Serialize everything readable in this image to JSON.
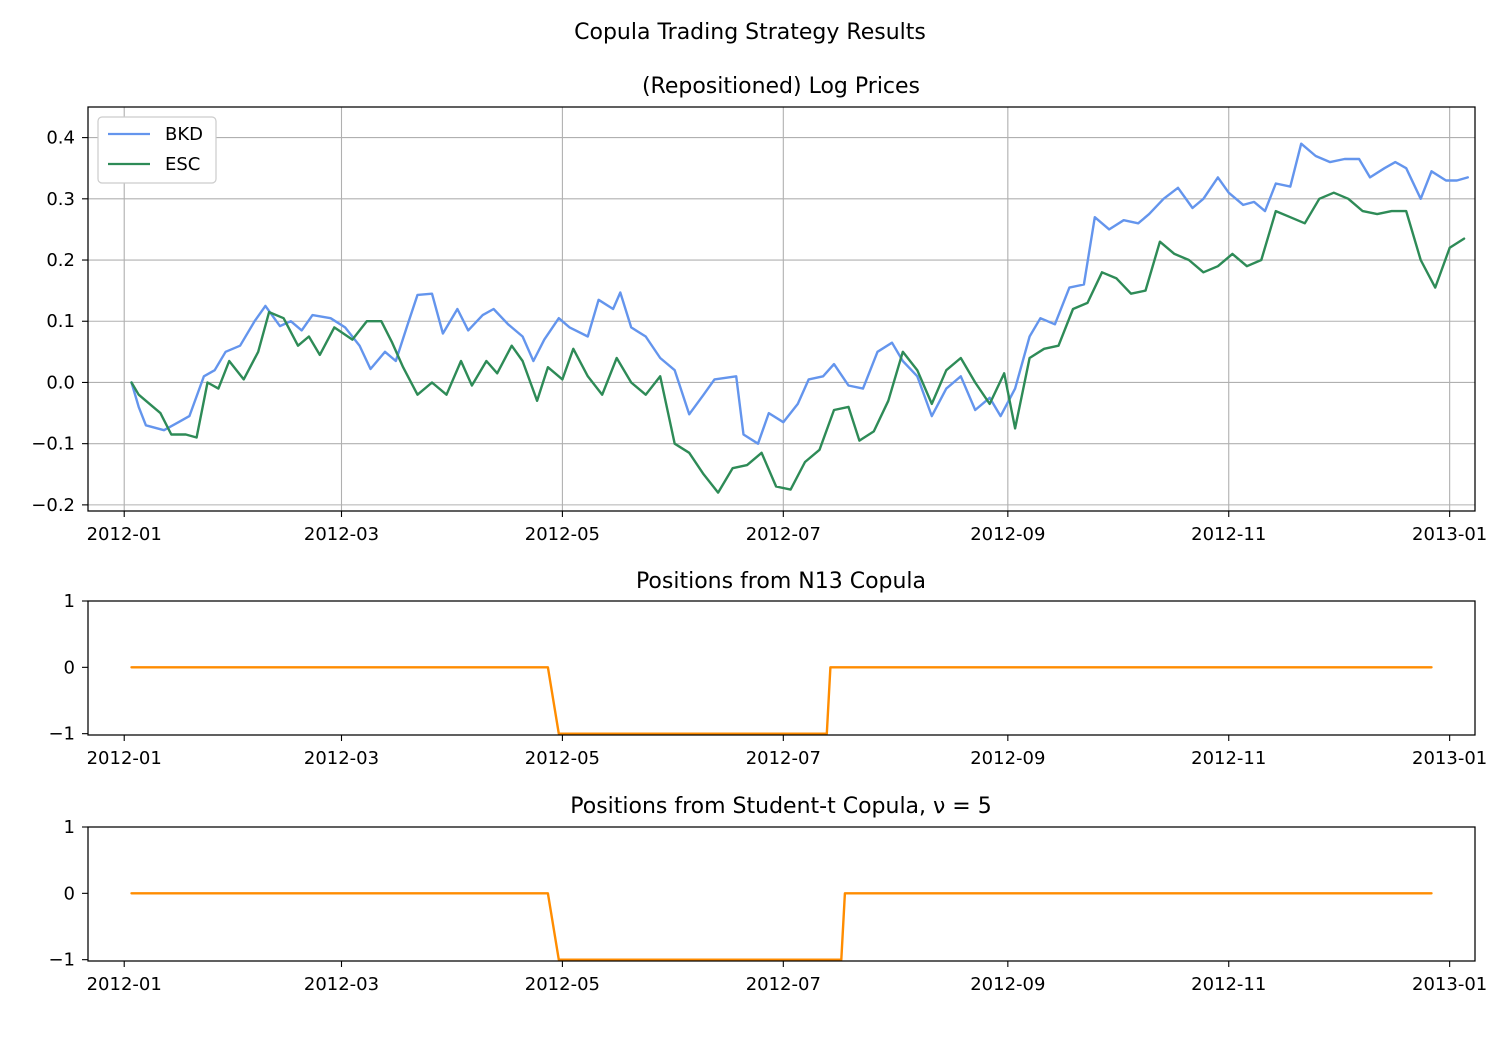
{
  "figure": {
    "suptitle": "Copula Trading Strategy Results"
  },
  "chart_data": [
    {
      "type": "line",
      "title": "(Repositioned) Log Prices",
      "xlabel": "",
      "ylabel": "",
      "x_ticks": [
        "2012-01",
        "2012-03",
        "2012-05",
        "2012-07",
        "2012-09",
        "2012-11",
        "2013-01"
      ],
      "y_ticks": [
        "−0.2",
        "−0.1",
        "0.0",
        "0.1",
        "0.2",
        "0.3",
        "0.4"
      ],
      "xlim": [
        "2011-12-22",
        "2013-01-08"
      ],
      "ylim": [
        -0.21,
        0.45
      ],
      "grid": true,
      "legend": "top-left",
      "series": [
        {
          "name": "BKD",
          "color": "#6495ed",
          "points": [
            [
              "2012-01-03",
              0.0
            ],
            [
              "2012-01-05",
              -0.04
            ],
            [
              "2012-01-07",
              -0.07
            ],
            [
              "2012-01-12",
              -0.078
            ],
            [
              "2012-01-16",
              -0.065
            ],
            [
              "2012-01-19",
              -0.055
            ],
            [
              "2012-01-23",
              0.01
            ],
            [
              "2012-01-26",
              0.02
            ],
            [
              "2012-01-29",
              0.05
            ],
            [
              "2012-02-02",
              0.06
            ],
            [
              "2012-02-06",
              0.1
            ],
            [
              "2012-02-09",
              0.125
            ],
            [
              "2012-02-13",
              0.092
            ],
            [
              "2012-02-16",
              0.1
            ],
            [
              "2012-02-19",
              0.085
            ],
            [
              "2012-02-22",
              0.11
            ],
            [
              "2012-02-27",
              0.105
            ],
            [
              "2012-03-02",
              0.09
            ],
            [
              "2012-03-06",
              0.06
            ],
            [
              "2012-03-09",
              0.022
            ],
            [
              "2012-03-13",
              0.05
            ],
            [
              "2012-03-16",
              0.035
            ],
            [
              "2012-03-19",
              0.09
            ],
            [
              "2012-03-22",
              0.143
            ],
            [
              "2012-03-26",
              0.145
            ],
            [
              "2012-03-29",
              0.08
            ],
            [
              "2012-04-02",
              0.12
            ],
            [
              "2012-04-05",
              0.085
            ],
            [
              "2012-04-09",
              0.11
            ],
            [
              "2012-04-12",
              0.12
            ],
            [
              "2012-04-16",
              0.095
            ],
            [
              "2012-04-20",
              0.075
            ],
            [
              "2012-04-23",
              0.035
            ],
            [
              "2012-04-26",
              0.07
            ],
            [
              "2012-04-30",
              0.105
            ],
            [
              "2012-05-03",
              0.09
            ],
            [
              "2012-05-08",
              0.075
            ],
            [
              "2012-05-11",
              0.135
            ],
            [
              "2012-05-15",
              0.12
            ],
            [
              "2012-05-17",
              0.147
            ],
            [
              "2012-05-20",
              0.09
            ],
            [
              "2012-05-24",
              0.075
            ],
            [
              "2012-05-28",
              0.04
            ],
            [
              "2012-06-01",
              0.02
            ],
            [
              "2012-06-05",
              -0.052
            ],
            [
              "2012-06-09",
              -0.02
            ],
            [
              "2012-06-12",
              0.005
            ],
            [
              "2012-06-18",
              0.01
            ],
            [
              "2012-06-20",
              -0.085
            ],
            [
              "2012-06-24",
              -0.1
            ],
            [
              "2012-06-27",
              -0.05
            ],
            [
              "2012-07-01",
              -0.065
            ],
            [
              "2012-07-05",
              -0.035
            ],
            [
              "2012-07-08",
              0.005
            ],
            [
              "2012-07-12",
              0.01
            ],
            [
              "2012-07-15",
              0.03
            ],
            [
              "2012-07-19",
              -0.005
            ],
            [
              "2012-07-23",
              -0.01
            ],
            [
              "2012-07-27",
              0.05
            ],
            [
              "2012-07-31",
              0.065
            ],
            [
              "2012-08-03",
              0.035
            ],
            [
              "2012-08-07",
              0.01
            ],
            [
              "2012-08-11",
              -0.055
            ],
            [
              "2012-08-15",
              -0.01
            ],
            [
              "2012-08-19",
              0.01
            ],
            [
              "2012-08-23",
              -0.045
            ],
            [
              "2012-08-27",
              -0.025
            ],
            [
              "2012-08-30",
              -0.055
            ],
            [
              "2012-09-03",
              -0.01
            ],
            [
              "2012-09-07",
              0.075
            ],
            [
              "2012-09-10",
              0.105
            ],
            [
              "2012-09-14",
              0.095
            ],
            [
              "2012-09-18",
              0.155
            ],
            [
              "2012-09-22",
              0.16
            ],
            [
              "2012-09-25",
              0.27
            ],
            [
              "2012-09-29",
              0.25
            ],
            [
              "2012-10-03",
              0.265
            ],
            [
              "2012-10-07",
              0.26
            ],
            [
              "2012-10-10",
              0.275
            ],
            [
              "2012-10-14",
              0.3
            ],
            [
              "2012-10-18",
              0.318
            ],
            [
              "2012-10-22",
              0.285
            ],
            [
              "2012-10-25",
              0.3
            ],
            [
              "2012-10-29",
              0.335
            ],
            [
              "2012-11-01",
              0.31
            ],
            [
              "2012-11-05",
              0.29
            ],
            [
              "2012-11-08",
              0.295
            ],
            [
              "2012-11-11",
              0.28
            ],
            [
              "2012-11-14",
              0.325
            ],
            [
              "2012-11-18",
              0.32
            ],
            [
              "2012-11-21",
              0.39
            ],
            [
              "2012-11-25",
              0.37
            ],
            [
              "2012-11-29",
              0.36
            ],
            [
              "2012-12-03",
              0.365
            ],
            [
              "2012-12-07",
              0.365
            ],
            [
              "2012-12-10",
              0.335
            ],
            [
              "2012-12-14",
              0.35
            ],
            [
              "2012-12-17",
              0.36
            ],
            [
              "2012-12-20",
              0.35
            ],
            [
              "2012-12-24",
              0.3
            ],
            [
              "2012-12-27",
              0.345
            ],
            [
              "2012-12-31",
              0.33
            ],
            [
              "2013-01-03",
              0.33
            ],
            [
              "2013-01-06",
              0.335
            ]
          ]
        },
        {
          "name": "ESC",
          "color": "#2e8b57",
          "points": [
            [
              "2012-01-03",
              0.0
            ],
            [
              "2012-01-05",
              -0.02
            ],
            [
              "2012-01-08",
              -0.035
            ],
            [
              "2012-01-11",
              -0.05
            ],
            [
              "2012-01-14",
              -0.085
            ],
            [
              "2012-01-18",
              -0.085
            ],
            [
              "2012-01-21",
              -0.09
            ],
            [
              "2012-01-24",
              0.0
            ],
            [
              "2012-01-27",
              -0.01
            ],
            [
              "2012-01-30",
              0.035
            ],
            [
              "2012-02-03",
              0.005
            ],
            [
              "2012-02-07",
              0.05
            ],
            [
              "2012-02-10",
              0.115
            ],
            [
              "2012-02-14",
              0.105
            ],
            [
              "2012-02-18",
              0.06
            ],
            [
              "2012-02-21",
              0.075
            ],
            [
              "2012-02-24",
              0.045
            ],
            [
              "2012-02-28",
              0.09
            ],
            [
              "2012-03-04",
              0.07
            ],
            [
              "2012-03-08",
              0.1
            ],
            [
              "2012-03-12",
              0.1
            ],
            [
              "2012-03-15",
              0.065
            ],
            [
              "2012-03-18",
              0.025
            ],
            [
              "2012-03-22",
              -0.02
            ],
            [
              "2012-03-26",
              0.0
            ],
            [
              "2012-03-30",
              -0.02
            ],
            [
              "2012-04-03",
              0.035
            ],
            [
              "2012-04-06",
              -0.005
            ],
            [
              "2012-04-10",
              0.035
            ],
            [
              "2012-04-13",
              0.015
            ],
            [
              "2012-04-17",
              0.06
            ],
            [
              "2012-04-20",
              0.035
            ],
            [
              "2012-04-24",
              -0.03
            ],
            [
              "2012-04-27",
              0.025
            ],
            [
              "2012-05-01",
              0.005
            ],
            [
              "2012-05-04",
              0.055
            ],
            [
              "2012-05-08",
              0.01
            ],
            [
              "2012-05-12",
              -0.02
            ],
            [
              "2012-05-16",
              0.04
            ],
            [
              "2012-05-20",
              0.0
            ],
            [
              "2012-05-24",
              -0.02
            ],
            [
              "2012-05-28",
              0.01
            ],
            [
              "2012-06-01",
              -0.1
            ],
            [
              "2012-06-05",
              -0.115
            ],
            [
              "2012-06-09",
              -0.15
            ],
            [
              "2012-06-13",
              -0.18
            ],
            [
              "2012-06-17",
              -0.14
            ],
            [
              "2012-06-21",
              -0.135
            ],
            [
              "2012-06-25",
              -0.115
            ],
            [
              "2012-06-29",
              -0.17
            ],
            [
              "2012-07-03",
              -0.175
            ],
            [
              "2012-07-07",
              -0.13
            ],
            [
              "2012-07-11",
              -0.11
            ],
            [
              "2012-07-15",
              -0.045
            ],
            [
              "2012-07-19",
              -0.04
            ],
            [
              "2012-07-22",
              -0.095
            ],
            [
              "2012-07-26",
              -0.08
            ],
            [
              "2012-07-30",
              -0.03
            ],
            [
              "2012-08-03",
              0.05
            ],
            [
              "2012-08-07",
              0.02
            ],
            [
              "2012-08-11",
              -0.035
            ],
            [
              "2012-08-15",
              0.02
            ],
            [
              "2012-08-19",
              0.04
            ],
            [
              "2012-08-23",
              0.0
            ],
            [
              "2012-08-27",
              -0.035
            ],
            [
              "2012-08-31",
              0.015
            ],
            [
              "2012-09-03",
              -0.075
            ],
            [
              "2012-09-07",
              0.04
            ],
            [
              "2012-09-11",
              0.055
            ],
            [
              "2012-09-15",
              0.06
            ],
            [
              "2012-09-19",
              0.12
            ],
            [
              "2012-09-23",
              0.13
            ],
            [
              "2012-09-27",
              0.18
            ],
            [
              "2012-10-01",
              0.17
            ],
            [
              "2012-10-05",
              0.145
            ],
            [
              "2012-10-09",
              0.15
            ],
            [
              "2012-10-13",
              0.23
            ],
            [
              "2012-10-17",
              0.21
            ],
            [
              "2012-10-21",
              0.2
            ],
            [
              "2012-10-25",
              0.18
            ],
            [
              "2012-10-29",
              0.19
            ],
            [
              "2012-11-02",
              0.21
            ],
            [
              "2012-11-06",
              0.19
            ],
            [
              "2012-11-10",
              0.2
            ],
            [
              "2012-11-14",
              0.28
            ],
            [
              "2012-11-18",
              0.27
            ],
            [
              "2012-11-22",
              0.26
            ],
            [
              "2012-11-26",
              0.3
            ],
            [
              "2012-11-30",
              0.31
            ],
            [
              "2012-12-04",
              0.3
            ],
            [
              "2012-12-08",
              0.28
            ],
            [
              "2012-12-12",
              0.275
            ],
            [
              "2012-12-16",
              0.28
            ],
            [
              "2012-12-20",
              0.28
            ],
            [
              "2012-12-24",
              0.2
            ],
            [
              "2012-12-28",
              0.155
            ],
            [
              "2013-01-01",
              0.22
            ],
            [
              "2013-01-05",
              0.235
            ]
          ]
        }
      ]
    },
    {
      "type": "line",
      "title": "Positions from N13 Copula",
      "xlabel": "",
      "ylabel": "",
      "x_ticks": [
        "2012-01",
        "2012-03",
        "2012-05",
        "2012-07",
        "2012-09",
        "2012-11",
        "2013-01"
      ],
      "y_ticks": [
        "−1",
        "0",
        "1"
      ],
      "xlim": [
        "2011-12-22",
        "2013-01-08"
      ],
      "ylim": [
        -1.02,
        1.0
      ],
      "grid": false,
      "series": [
        {
          "color": "#ff8c00",
          "points": [
            [
              "2012-01-03",
              0
            ],
            [
              "2012-04-27",
              0
            ],
            [
              "2012-04-30",
              -1
            ],
            [
              "2012-07-13",
              -1
            ],
            [
              "2012-07-14",
              0
            ],
            [
              "2012-12-27",
              0
            ]
          ]
        }
      ]
    },
    {
      "type": "line",
      "title": "Positions from Student-t Copula, ν = 5",
      "xlabel": "",
      "ylabel": "",
      "x_ticks": [
        "2012-01",
        "2012-03",
        "2012-05",
        "2012-07",
        "2012-09",
        "2012-11",
        "2013-01"
      ],
      "y_ticks": [
        "−1",
        "0",
        "1"
      ],
      "xlim": [
        "2011-12-22",
        "2013-01-08"
      ],
      "ylim": [
        -1.02,
        1.0
      ],
      "grid": false,
      "series": [
        {
          "color": "#ff8c00",
          "points": [
            [
              "2012-01-03",
              0
            ],
            [
              "2012-04-27",
              0
            ],
            [
              "2012-04-30",
              -1
            ],
            [
              "2012-07-17",
              -1
            ],
            [
              "2012-07-18",
              0
            ],
            [
              "2012-12-27",
              0
            ]
          ]
        }
      ]
    }
  ]
}
